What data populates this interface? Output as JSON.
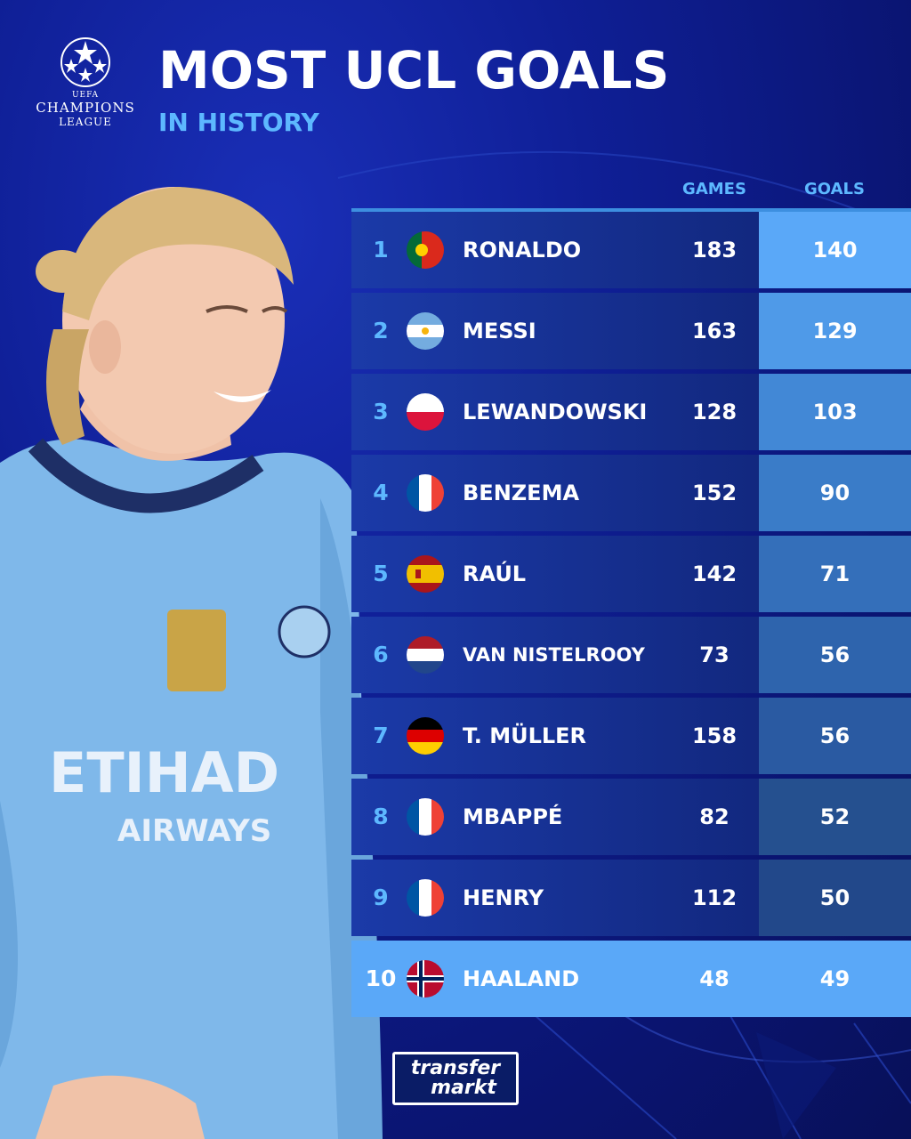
{
  "header": {
    "logo_uefa": "UEFA",
    "logo_champions": "CHAMPIONS",
    "logo_league": "LEAGUE",
    "title": "MOST UCL GOALS",
    "subtitle": "IN HISTORY"
  },
  "columns": {
    "games": "GAMES",
    "goals": "GOALS"
  },
  "colors": {
    "title": "#ffffff",
    "accent_blue": "#5db8ff",
    "row_dark": "#12287f",
    "highlight": "#5aa8f8"
  },
  "rows": [
    {
      "rank": "1",
      "name": "RONALDO",
      "country": "portugal",
      "games": "183",
      "goals": "140"
    },
    {
      "rank": "2",
      "name": "MESSI",
      "country": "argentina",
      "games": "163",
      "goals": "129"
    },
    {
      "rank": "3",
      "name": "LEWANDOWSKI",
      "country": "poland",
      "games": "128",
      "goals": "103"
    },
    {
      "rank": "4",
      "name": "BENZEMA",
      "country": "france",
      "games": "152",
      "goals": "90"
    },
    {
      "rank": "5",
      "name": "RAÚL",
      "country": "spain",
      "games": "142",
      "goals": "71"
    },
    {
      "rank": "6",
      "name": "VAN NISTELROOY",
      "country": "netherlands",
      "games": "73",
      "goals": "56"
    },
    {
      "rank": "7",
      "name": "T. MÜLLER",
      "country": "germany",
      "games": "158",
      "goals": "56"
    },
    {
      "rank": "8",
      "name": "MBAPPÉ",
      "country": "france",
      "games": "82",
      "goals": "52"
    },
    {
      "rank": "9",
      "name": "HENRY",
      "country": "france",
      "games": "112",
      "goals": "50"
    },
    {
      "rank": "10",
      "name": "HAALAND",
      "country": "norway",
      "games": "48",
      "goals": "49"
    }
  ],
  "player_shirt": {
    "sponsor_line1": "ETIHAD",
    "sponsor_line2": "AIRWAYS"
  },
  "footer": {
    "brand_line1": "transfer",
    "brand_line2": "markt"
  }
}
